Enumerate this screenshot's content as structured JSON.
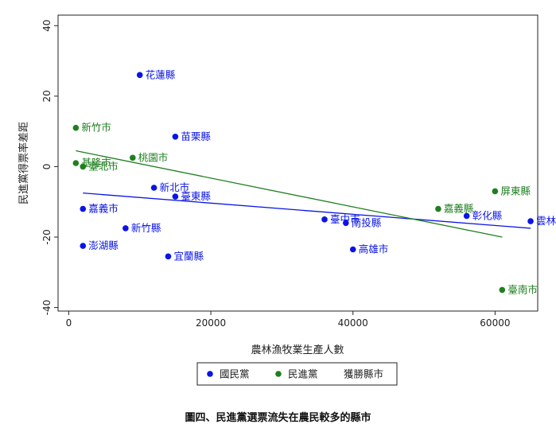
{
  "caption": "圖四、民進黨選票流失在農民較多的縣市",
  "chart_data": {
    "type": "scatter",
    "xlabel": "農林漁牧業生產人數",
    "ylabel": "民進黨得票率差距",
    "xlim": [
      -1500,
      66000
    ],
    "ylim": [
      -41,
      43
    ],
    "xticks": [
      0,
      20000,
      40000,
      60000
    ],
    "xtick_labels": [
      "0",
      "20000",
      "40000",
      "60000"
    ],
    "yticks": [
      -40,
      -20,
      0,
      20,
      40
    ],
    "ytick_labels": [
      "-40",
      "-20",
      "0",
      "20",
      "40"
    ],
    "grid": false,
    "legend": {
      "placement": "bottom",
      "entries": [
        {
          "label": "國民黨",
          "color": "#0a14e6",
          "marker": "dot"
        },
        {
          "label": "民進黨",
          "color": "#1f7f1f",
          "marker": "dot"
        },
        {
          "label": "獲勝縣市",
          "color": "#222222",
          "marker": "none"
        }
      ]
    },
    "series": [
      {
        "name": "國民黨",
        "color": "#0a14e6",
        "points": [
          {
            "x": 10000,
            "y": 26,
            "label": "花蓮縣"
          },
          {
            "x": 15000,
            "y": 8.5,
            "label": "苗栗縣"
          },
          {
            "x": 12000,
            "y": -6,
            "label": "新北市"
          },
          {
            "x": 15000,
            "y": -8.5,
            "label": "臺東縣"
          },
          {
            "x": 2000,
            "y": -12,
            "label": "嘉義市"
          },
          {
            "x": 8000,
            "y": -17.5,
            "label": "新竹縣"
          },
          {
            "x": 2000,
            "y": -22.5,
            "label": "澎湖縣"
          },
          {
            "x": 14000,
            "y": -25.5,
            "label": "宜蘭縣"
          },
          {
            "x": 36000,
            "y": -15,
            "label": "臺中市"
          },
          {
            "x": 39000,
            "y": -16,
            "label": "南投縣"
          },
          {
            "x": 40000,
            "y": -23.5,
            "label": "高雄市"
          },
          {
            "x": 56000,
            "y": -14,
            "label": "彰化縣"
          },
          {
            "x": 65000,
            "y": -15.5,
            "label": "雲林縣"
          }
        ]
      },
      {
        "name": "民進黨",
        "color": "#1f7f1f",
        "points": [
          {
            "x": 1000,
            "y": 11,
            "label": "新竹市"
          },
          {
            "x": 9000,
            "y": 2.5,
            "label": "桃園市"
          },
          {
            "x": 1000,
            "y": 1,
            "label": "基隆市"
          },
          {
            "x": 2000,
            "y": 0,
            "label": "臺北市"
          },
          {
            "x": 52000,
            "y": -12,
            "label": "嘉義縣"
          },
          {
            "x": 60000,
            "y": -7,
            "label": "屏東縣"
          },
          {
            "x": 61000,
            "y": -35,
            "label": "臺南市"
          }
        ]
      }
    ],
    "fit_lines": [
      {
        "series": "國民黨",
        "color": "#0a14e6",
        "x": [
          2000,
          65000
        ],
        "y": [
          -7.5,
          -17.5
        ]
      },
      {
        "series": "民進黨",
        "color": "#1f7f1f",
        "x": [
          1000,
          61000
        ],
        "y": [
          4.5,
          -20
        ]
      }
    ]
  }
}
